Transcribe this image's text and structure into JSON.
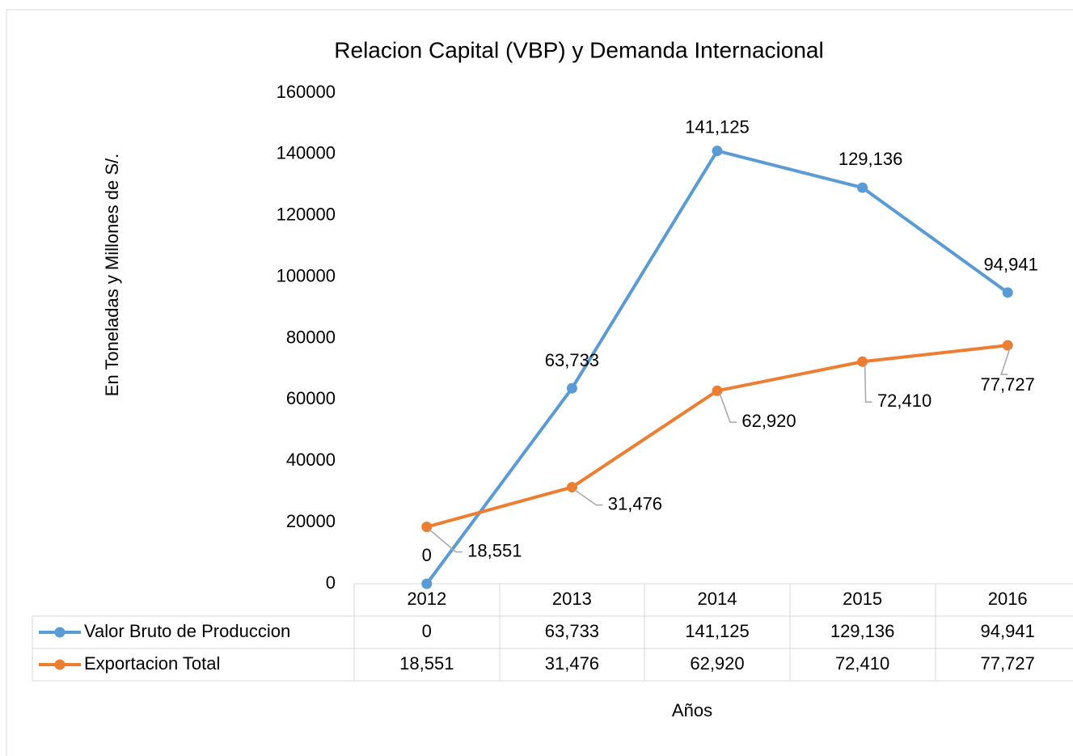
{
  "chart_data": {
    "type": "line",
    "title": "Relacion Capital (VBP) y Demanda Internacional",
    "y_label": "En  Toneladas y Millones de S/.",
    "x_label": "Años",
    "categories": [
      "2012",
      "2013",
      "2014",
      "2015",
      "2016"
    ],
    "series": [
      {
        "name": "Valor Bruto de Produccion",
        "color": "#5b9bd5",
        "values": [
          0,
          63733,
          141125,
          129136,
          94941
        ],
        "value_labels": [
          "0",
          "63,733",
          "141,125",
          "129,136",
          "94,941"
        ]
      },
      {
        "name": "Exportacion Total",
        "color": "#ed7d31",
        "values": [
          18551,
          31476,
          62920,
          72410,
          77727
        ],
        "value_labels": [
          "18,551",
          "31,476",
          "62,920",
          "72,410",
          "77,727"
        ]
      }
    ],
    "ylim": [
      0,
      160000
    ],
    "yticks": [
      0,
      20000,
      40000,
      60000,
      80000,
      100000,
      120000,
      140000,
      160000
    ],
    "grid": false
  }
}
